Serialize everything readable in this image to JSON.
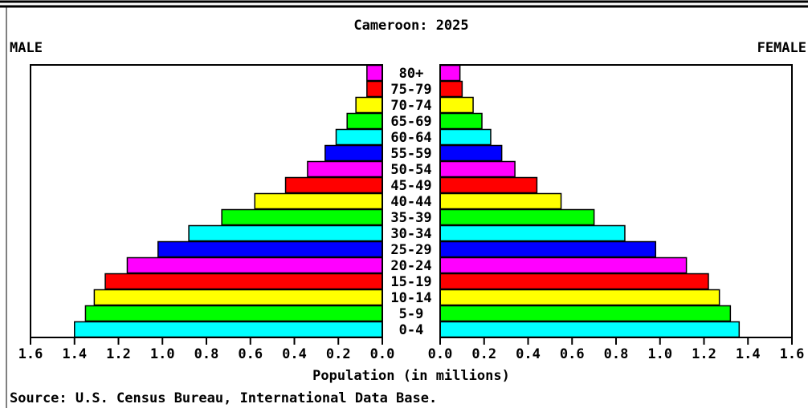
{
  "chart_data": {
    "type": "population-pyramid",
    "title": "Cameroon: 2025",
    "xlabel": "Population (in millions)",
    "source": "Source: U.S. Census Bureau, International Data Base.",
    "categories": [
      "0-4",
      "5-9",
      "10-14",
      "15-19",
      "20-24",
      "25-29",
      "30-34",
      "35-39",
      "40-44",
      "45-49",
      "50-54",
      "55-59",
      "60-64",
      "65-69",
      "70-74",
      "75-79",
      "80+"
    ],
    "colors": [
      "#00ffff",
      "#00ff00",
      "#ffff00",
      "#ff0000",
      "#ff00ff",
      "#0000ff",
      "#00ffff",
      "#00ff00",
      "#ffff00",
      "#ff0000",
      "#ff00ff",
      "#0000ff",
      "#00ffff",
      "#00ff00",
      "#ffff00",
      "#ff0000",
      "#ff00ff"
    ],
    "series": [
      {
        "name": "MALE",
        "side": "left",
        "values": [
          1.4,
          1.35,
          1.31,
          1.26,
          1.16,
          1.02,
          0.88,
          0.73,
          0.58,
          0.44,
          0.34,
          0.26,
          0.21,
          0.16,
          0.12,
          0.07,
          0.07
        ]
      },
      {
        "name": "FEMALE",
        "side": "right",
        "values": [
          1.36,
          1.32,
          1.27,
          1.22,
          1.12,
          0.98,
          0.84,
          0.7,
          0.55,
          0.44,
          0.34,
          0.28,
          0.23,
          0.19,
          0.15,
          0.1,
          0.09
        ]
      }
    ],
    "xlim": [
      0,
      1.6
    ],
    "xticks": [
      {
        "value": 0,
        "label": "0.0"
      },
      0.2,
      0.4,
      0.6,
      0.8,
      {
        "value": 1,
        "label": "1.0"
      },
      1.2,
      1.4,
      1.6
    ]
  }
}
